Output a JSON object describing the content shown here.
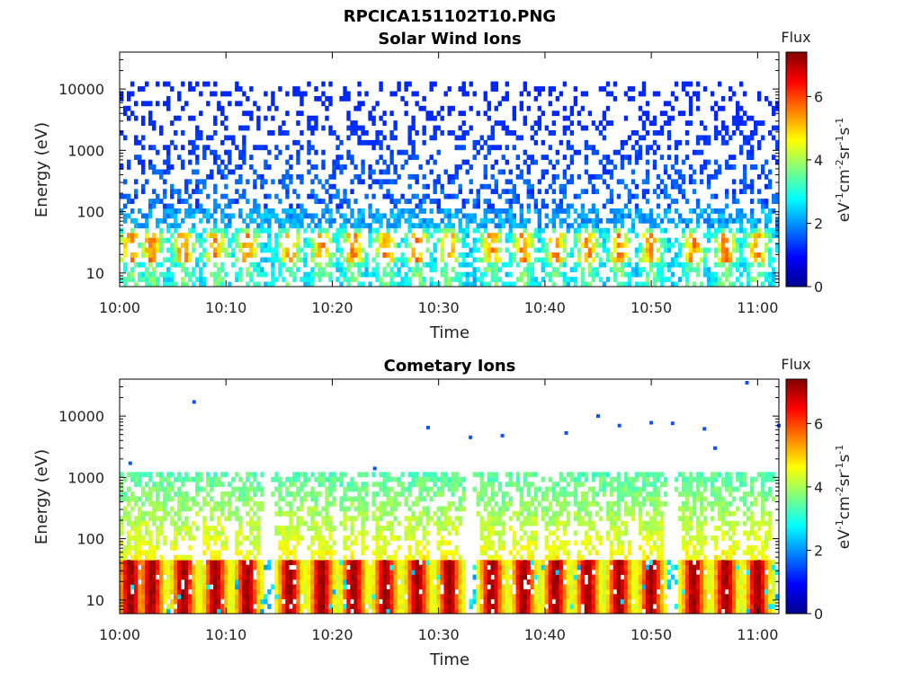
{
  "figure_title": "RPCICA151102T10.PNG",
  "chart_data": [
    {
      "type": "heatmap",
      "title": "Solar Wind Ions",
      "xlabel": "Time",
      "ylabel": "Energy (eV)",
      "x_range": [
        "10:00",
        "11:02"
      ],
      "x_ticks": [
        "10:00",
        "10:10",
        "10:20",
        "10:30",
        "10:40",
        "10:50",
        "11:00"
      ],
      "y_scale": "log",
      "y_range": [
        6,
        40000
      ],
      "y_ticks": [
        10,
        100,
        1000,
        10000
      ],
      "y_tick_labels": [
        "10",
        "100",
        "1000",
        "10000"
      ],
      "colorbar": {
        "title": "Flux",
        "label": "eV⁻¹cm⁻²sr⁻¹s⁻¹",
        "range": [
          0,
          7.4
        ],
        "ticks": [
          0,
          2,
          4,
          6
        ],
        "colormap": "jet"
      },
      "pulse_times": [
        "10:01",
        "10:03",
        "10:06",
        "10:09",
        "10:12",
        "10:16",
        "10:19",
        "10:22",
        "10:25",
        "10:28",
        "10:31",
        "10:35",
        "10:38",
        "10:41",
        "10:44",
        "10:47",
        "10:50",
        "10:54",
        "10:57",
        "11:00"
      ],
      "features": {
        "background_flux": 2.0,
        "core_peak_energy": 25,
        "core_flux": 5.0,
        "high_energy_flux": 1.2
      }
    },
    {
      "type": "heatmap",
      "title": "Cometary Ions",
      "xlabel": "Time",
      "ylabel": "Energy (eV)",
      "x_range": [
        "10:00",
        "11:02"
      ],
      "x_ticks": [
        "10:00",
        "10:10",
        "10:20",
        "10:30",
        "10:40",
        "10:50",
        "11:00"
      ],
      "y_scale": "log",
      "y_range": [
        6,
        40000
      ],
      "y_ticks": [
        10,
        100,
        1000,
        10000
      ],
      "y_tick_labels": [
        "10",
        "100",
        "1000",
        "10000"
      ],
      "colorbar": {
        "title": "Flux",
        "label": "eV⁻¹cm⁻²sr⁻¹s⁻¹",
        "range": [
          0,
          7.4
        ],
        "ticks": [
          0,
          2,
          4,
          6
        ],
        "colormap": "jet"
      },
      "pulse_times": [
        "10:01",
        "10:03",
        "10:06",
        "10:09",
        "10:12",
        "10:16",
        "10:19",
        "10:22",
        "10:25",
        "10:28",
        "10:31",
        "10:35",
        "10:38",
        "10:41",
        "10:44",
        "10:47",
        "10:50",
        "10:54",
        "10:57",
        "11:00"
      ],
      "features": {
        "core_peak_energy": 25,
        "core_flux": 7.0,
        "plume_top_energy": 600,
        "plume_flux": 3.0,
        "scattered_points": [
          {
            "time": "10:01",
            "energy": 1700
          },
          {
            "time": "10:07",
            "energy": 17000
          },
          {
            "time": "10:24",
            "energy": 1400
          },
          {
            "time": "10:29",
            "energy": 6500
          },
          {
            "time": "10:33",
            "energy": 4500
          },
          {
            "time": "10:36",
            "energy": 4800
          },
          {
            "time": "10:42",
            "energy": 5300
          },
          {
            "time": "10:45",
            "energy": 10000
          },
          {
            "time": "10:47",
            "energy": 7000
          },
          {
            "time": "10:50",
            "energy": 7800
          },
          {
            "time": "10:52",
            "energy": 7600
          },
          {
            "time": "10:55",
            "energy": 6200
          },
          {
            "time": "10:56",
            "energy": 3000
          },
          {
            "time": "10:59",
            "energy": 35000
          },
          {
            "time": "11:02",
            "energy": 7000
          }
        ]
      }
    }
  ]
}
